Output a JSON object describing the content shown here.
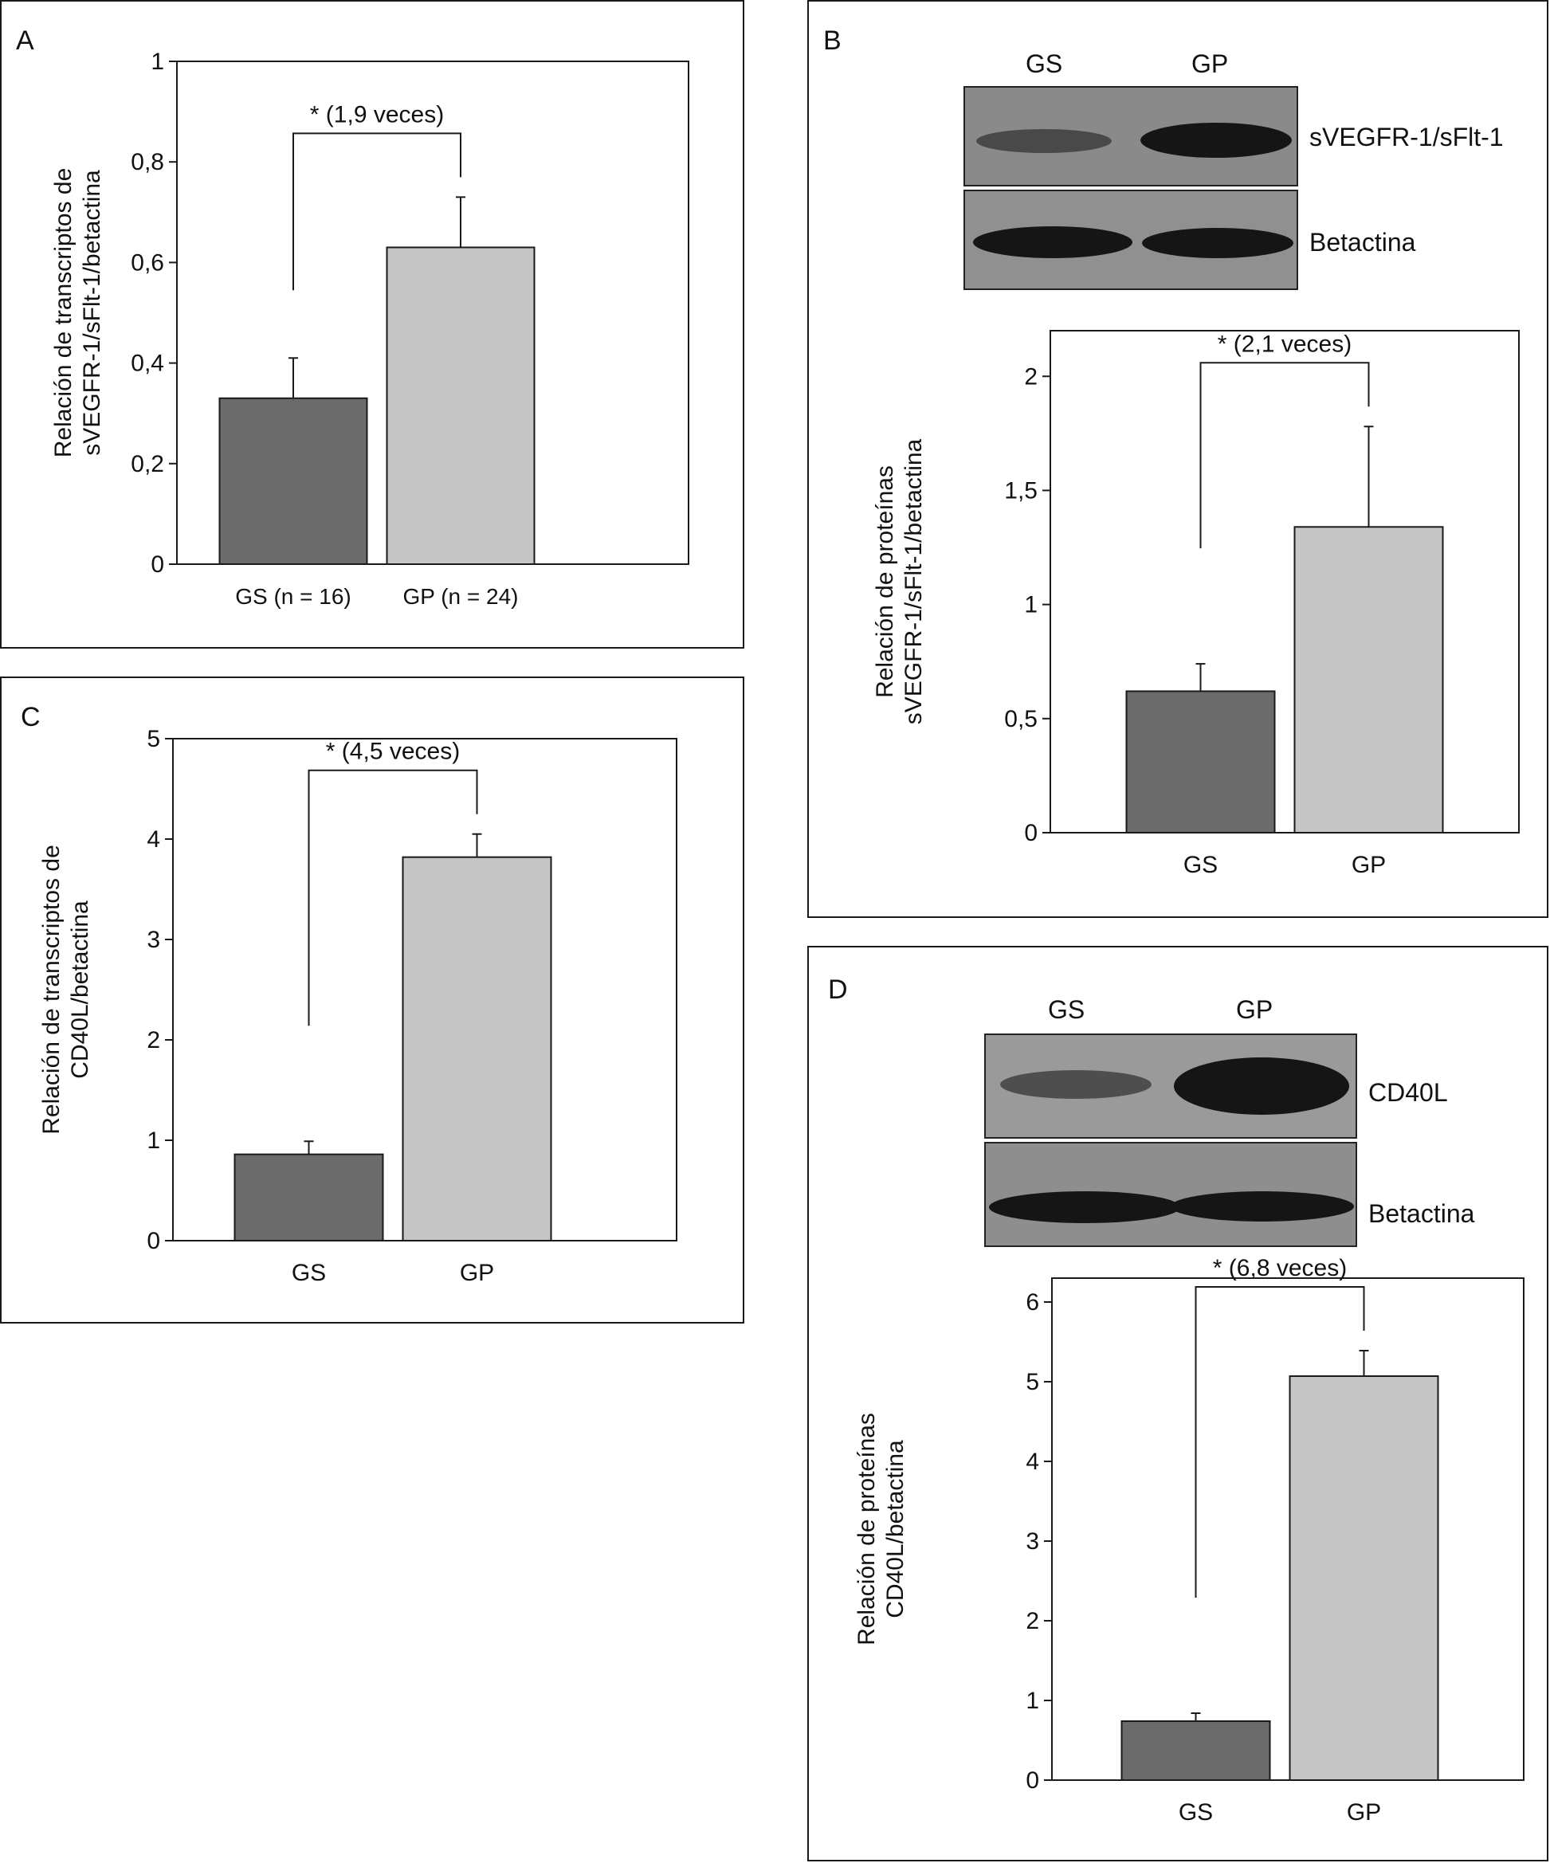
{
  "colors": {
    "gs_bar": "#6b6b6b",
    "gp_bar": "#c6c6c6",
    "blot_bg": "#8a8a8a",
    "band": "#151515"
  },
  "panels": {
    "A": {
      "letter": "A"
    },
    "B": {
      "letter": "B",
      "blot": {
        "columns": [
          "GS",
          "GP"
        ],
        "rows": [
          {
            "label": "sVEGFR-1/sFlt-1",
            "band_intensity": [
              0.35,
              0.85
            ]
          },
          {
            "label": "Betactina",
            "band_intensity": [
              0.95,
              0.9
            ]
          }
        ]
      }
    },
    "C": {
      "letter": "C"
    },
    "D": {
      "letter": "D",
      "blot": {
        "columns": [
          "GS",
          "GP"
        ],
        "rows": [
          {
            "label": "CD40L",
            "band_intensity": [
              0.35,
              0.95
            ]
          },
          {
            "label": "Betactina",
            "band_intensity": [
              0.95,
              0.95
            ]
          }
        ]
      }
    }
  },
  "chart_data": [
    {
      "panel": "A",
      "type": "bar",
      "categories": [
        "GS (n = 16)",
        "GP (n = 24)"
      ],
      "values": [
        0.33,
        0.63
      ],
      "errors": [
        0.08,
        0.1
      ],
      "ylabel": [
        "Relación de transcriptos de",
        "sVEGFR-1/sFlt-1/betactina"
      ],
      "ylim": [
        0,
        1
      ],
      "yticks": [
        0,
        0.2,
        0.4,
        0.6,
        0.8,
        1
      ],
      "ytick_labels": [
        "0",
        "0,2",
        "0,4",
        "0,6",
        "0,8",
        "1"
      ],
      "annotation": "* (1,9 veces)"
    },
    {
      "panel": "B",
      "type": "bar",
      "categories": [
        "GS",
        "GP"
      ],
      "values": [
        0.62,
        1.34
      ],
      "errors": [
        0.12,
        0.44
      ],
      "ylabel": [
        "Relación de proteínas",
        "sVEGFR-1/sFlt-1/betactina"
      ],
      "ylim": [
        0,
        2.2
      ],
      "yticks": [
        0,
        0.5,
        1,
        1.5,
        2
      ],
      "ytick_labels": [
        "0",
        "0,5",
        "1",
        "1,5",
        "2"
      ],
      "annotation": "* (2,1 veces)"
    },
    {
      "panel": "C",
      "type": "bar",
      "categories": [
        "GS",
        "GP"
      ],
      "values": [
        0.86,
        3.82
      ],
      "errors": [
        0.13,
        0.23
      ],
      "ylabel": [
        "Relación de transcriptos de",
        "CD40L/betactina"
      ],
      "ylim": [
        0,
        5
      ],
      "yticks": [
        0,
        1,
        2,
        3,
        4,
        5
      ],
      "ytick_labels": [
        "0",
        "1",
        "2",
        "3",
        "4",
        "5"
      ],
      "annotation": "* (4,5 veces)"
    },
    {
      "panel": "D",
      "type": "bar",
      "categories": [
        "GS",
        "GP"
      ],
      "values": [
        0.74,
        5.07
      ],
      "errors": [
        0.1,
        0.32
      ],
      "ylabel": [
        "Relación de proteínas",
        "CD40L/betactina"
      ],
      "ylim": [
        0,
        6.3
      ],
      "yticks": [
        0,
        1,
        2,
        3,
        4,
        5,
        6
      ],
      "ytick_labels": [
        "0",
        "1",
        "2",
        "3",
        "4",
        "5",
        "6"
      ],
      "annotation": "* (6,8 veces)"
    }
  ]
}
